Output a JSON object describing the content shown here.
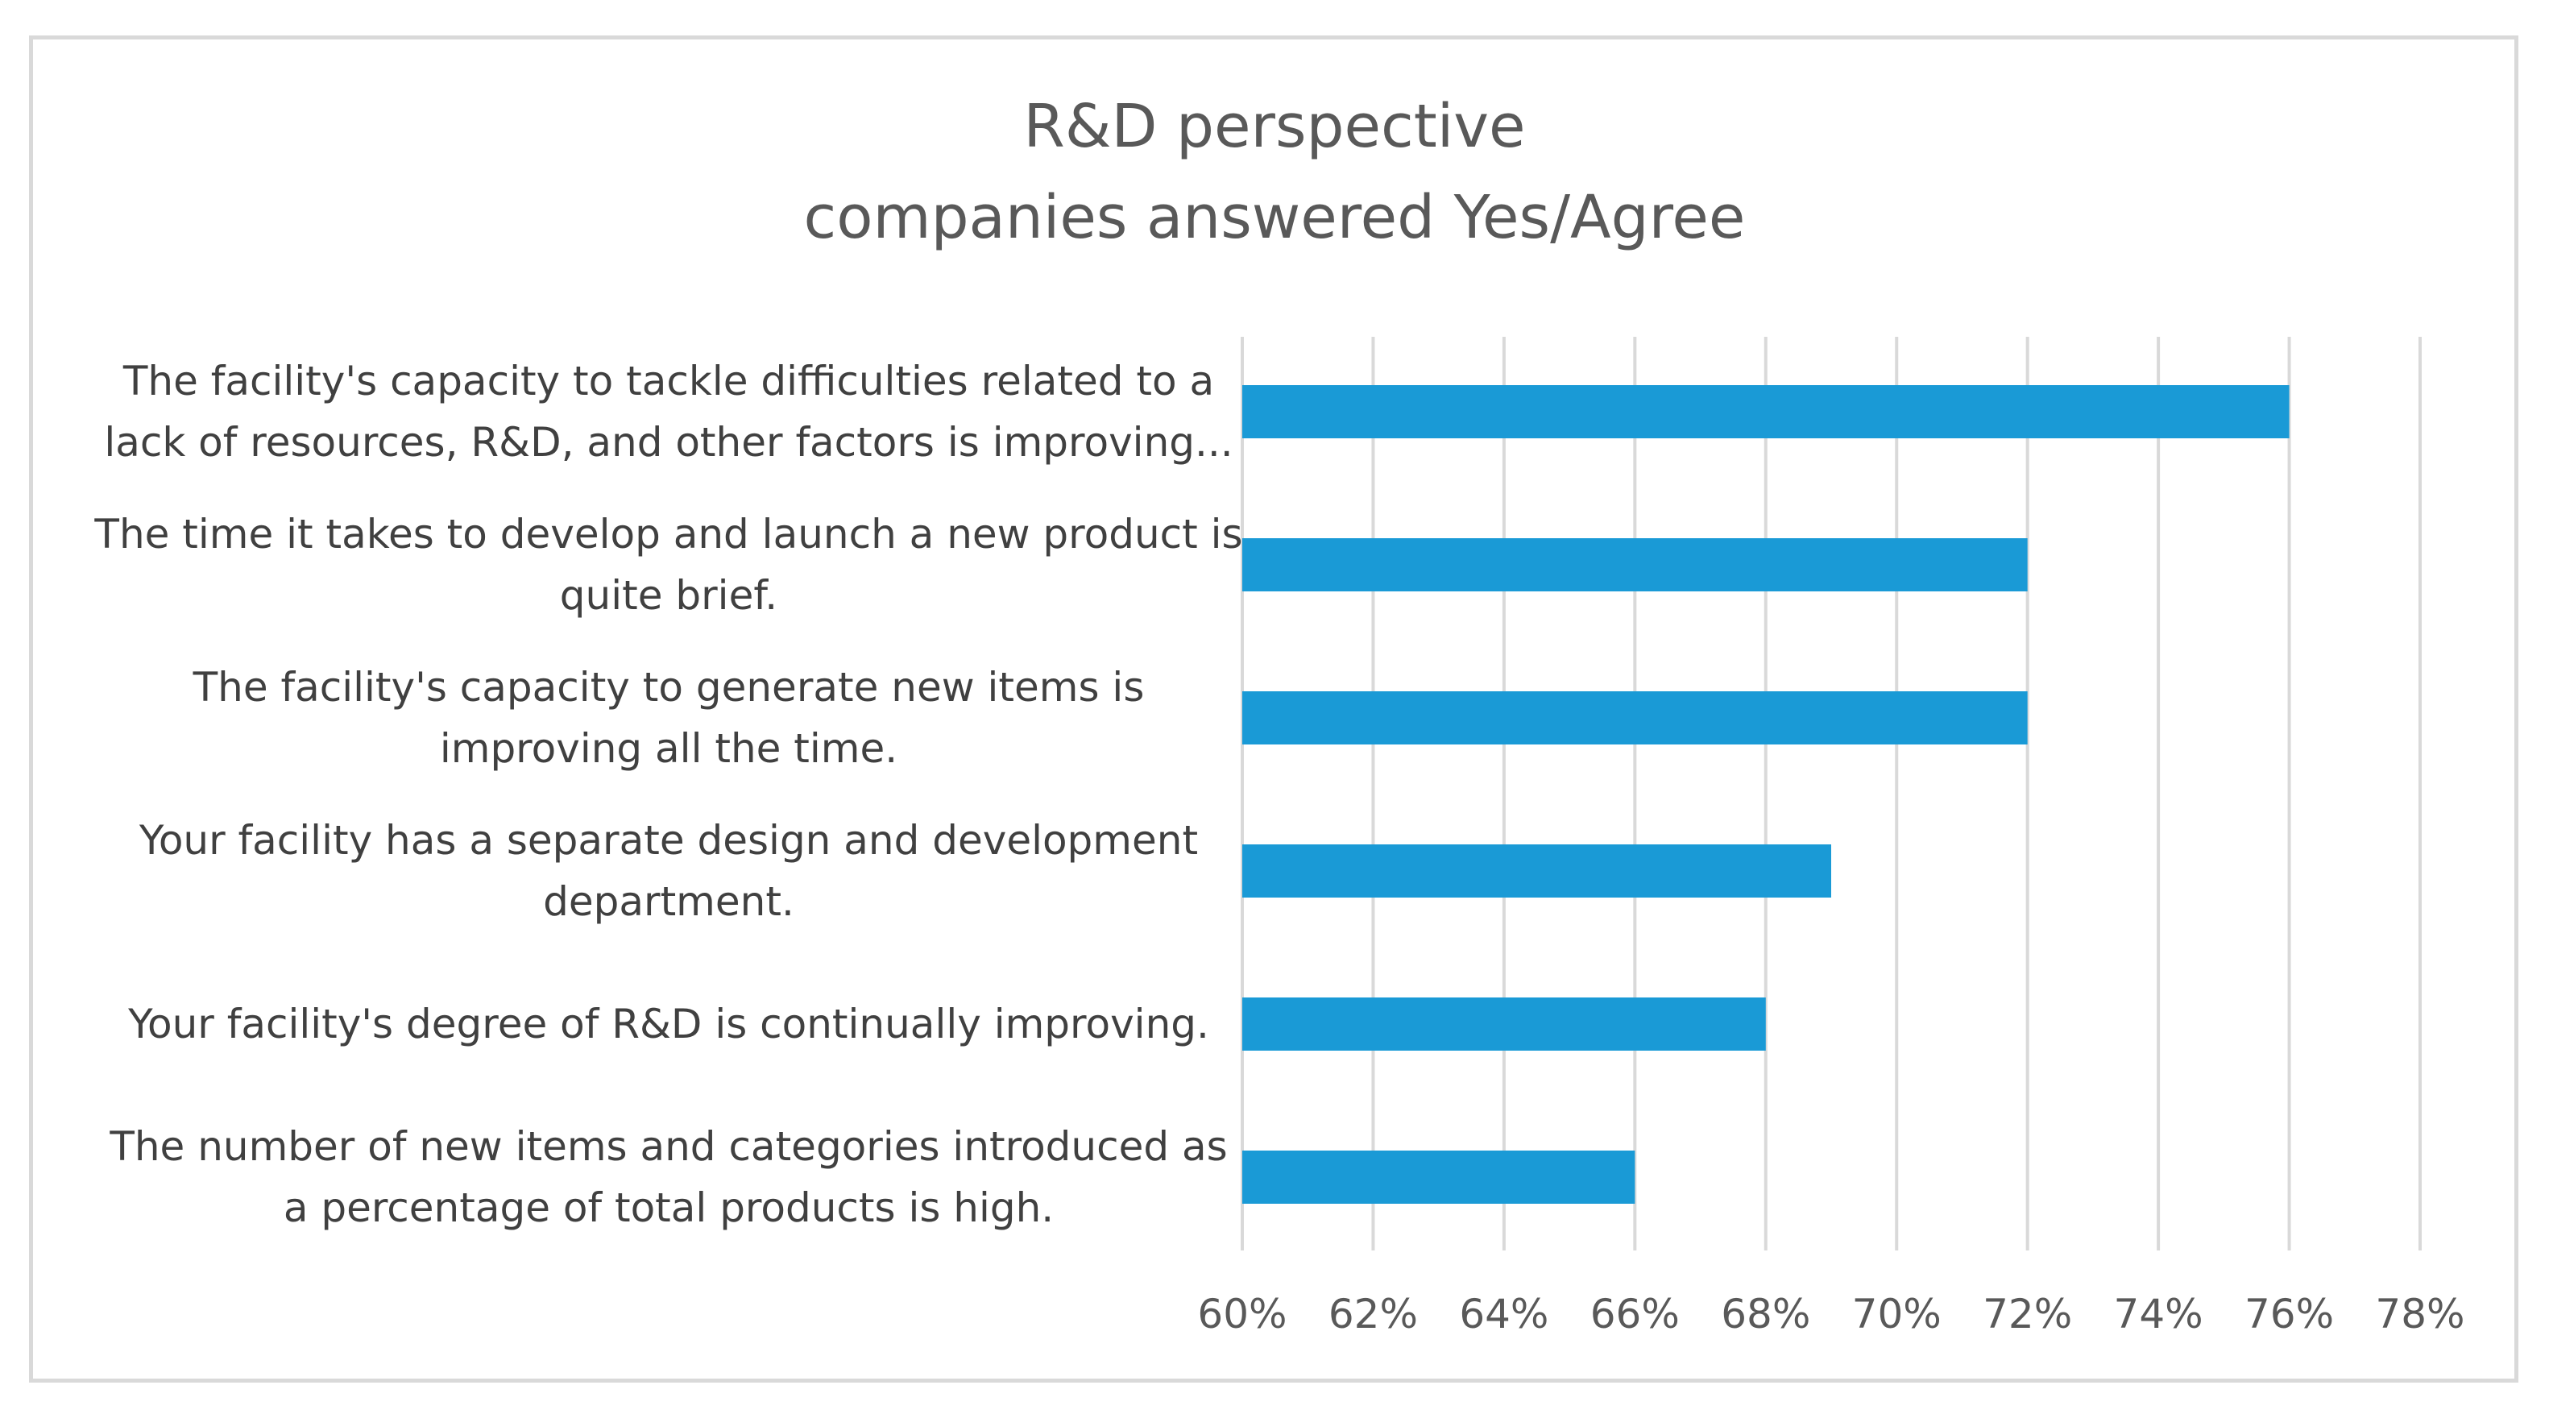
{
  "chart_data": {
    "type": "bar",
    "orientation": "horizontal",
    "title_lines": [
      "R&D perspective",
      "companies answered Yes/Agree"
    ],
    "categories": [
      [
        "The facility's capacity to tackle difficulties related to a",
        "lack of resources, R&D, and other factors is improving..."
      ],
      [
        "The time it takes to develop and launch a new product is",
        "quite brief."
      ],
      [
        "The facility's capacity to generate new items is",
        "improving all the time."
      ],
      [
        "Your facility has a separate design and development",
        "department."
      ],
      [
        "Your facility's degree of R&D is continually improving."
      ],
      [
        "The number of new items and categories introduced as",
        "a percentage of total products is high."
      ]
    ],
    "values": [
      0.76,
      0.72,
      0.72,
      0.69,
      0.68,
      0.66
    ],
    "xlim": [
      0.6,
      0.78
    ],
    "x_ticks": [
      "60%",
      "62%",
      "64%",
      "66%",
      "68%",
      "70%",
      "72%",
      "74%",
      "76%",
      "78%"
    ],
    "grid": true,
    "legend": "none",
    "bar_color": "#1a9ad6",
    "grid_color": "#d9d9d9",
    "text_color": "#595959"
  }
}
